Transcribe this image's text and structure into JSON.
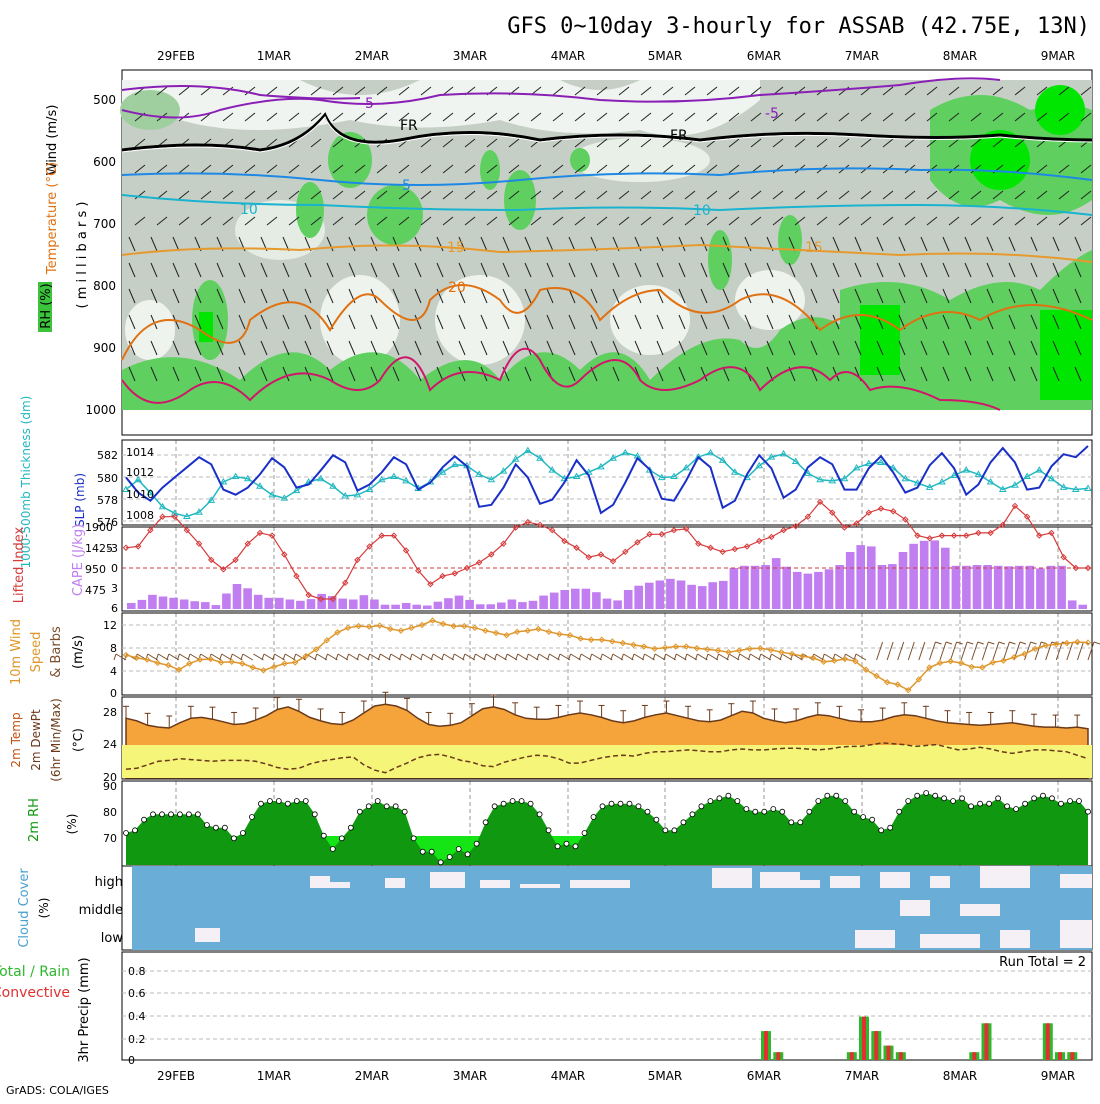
{
  "title": "GFS 0~10day 3-hourly for ASSAB (42.75E, 13N)",
  "credit": "GrADS: COLA/IGES",
  "dates": [
    "29FEB",
    "1MAR",
    "2MAR",
    "3MAR",
    "4MAR",
    "5MAR",
    "6MAR",
    "7MAR",
    "8MAR",
    "9MAR"
  ],
  "colors": {
    "rh_light": "#c8d2c8",
    "rh_mid": "#9fcf9f",
    "rh_green": "#5fd05f",
    "rh_bright": "#00e600",
    "temp_purple": "#8a1fb5",
    "temp_blue": "#1e88e5",
    "temp_cyan": "#19b3cf",
    "temp_orange": "#e69a2e",
    "temp_dark_orange": "#e07010",
    "temp_magenta": "#d0156a",
    "slp": "#1a2fc8",
    "thickness": "#22b8c0",
    "lifted": "#d63a3a",
    "cape": "#c07ef0",
    "wind": "#e0962a",
    "barb": "#7a4f2e",
    "temp_fill": "#f5a43c",
    "dew_fill": "#f5f57a",
    "rh2m_dark": "#109810",
    "rh2m_light": "#15e515",
    "cloud": "#6aaed8",
    "cloud_clear": "#f4f0f6",
    "precip_green": "#2db82d",
    "precip_red": "#e03030"
  },
  "panels": {
    "upper": {
      "ylabel_wind": "Wind (m/s)",
      "ylabel_temp": "Temperature (°C)",
      "ylabel_rh": "RH (%)",
      "ylabel_units": "( m i l l i b a r s )",
      "yticks": [
        "500",
        "600",
        "700",
        "800",
        "900",
        "1000"
      ],
      "contour_labels": [
        "-5",
        "FR",
        "5",
        "10",
        "15",
        "20",
        "-5",
        "FR",
        "5",
        "10",
        "15",
        "20"
      ]
    },
    "slp": {
      "ylabel_thick": "1000-500mb Thickness (dm)",
      "ylabel_slp": "SLP (mb)",
      "left_ticks": [
        "582",
        "580",
        "578",
        "576"
      ],
      "right_ticks": [
        "1014",
        "1012",
        "1010",
        "1008"
      ]
    },
    "cape": {
      "ylabel_li": "Lifted Index",
      "ylabel_cape": "CAPE (J/kg)",
      "left_ticks": [
        "-3",
        "0",
        "3",
        "6"
      ],
      "right_ticks": [
        "1900",
        "1425",
        "950",
        "475"
      ]
    },
    "wind": {
      "ylabel1": "10m Wind",
      "ylabel2": "Speed",
      "ylabel3": "& Barbs",
      "ylabel4": "(m/s)",
      "ticks": [
        "12",
        "8",
        "4",
        "0"
      ]
    },
    "temp": {
      "ylabel1": "2m Temp",
      "ylabel2": "2m DewPt",
      "ylabel3": "(6hr Min/Max)",
      "ylabel4": "(°C)",
      "ticks": [
        "28",
        "24",
        "20"
      ]
    },
    "rh": {
      "ylabel1": "2m RH",
      "ylabel2": "(%)",
      "ticks": [
        "90",
        "80",
        "70"
      ]
    },
    "cloud": {
      "ylabel1": "Cloud Cover",
      "ylabel2": "(%)",
      "levels": [
        "high",
        "middle",
        "low"
      ]
    },
    "precip": {
      "ylabel1": "Total / Rain",
      "ylabel2": "Convective",
      "ylabel3": "3hr Precip (mm)",
      "ticks": [
        "0.8",
        "0.6",
        "0.4",
        "0.2",
        "0"
      ],
      "run_total": "Run Total = 2"
    }
  },
  "chart_data": [
    {
      "type": "line",
      "name": "SLP",
      "unit": "mb",
      "values": [
        1011.5,
        1010,
        1009.2,
        1010.5,
        1011.5,
        1012.5,
        1013.5,
        1012.8,
        1010.3,
        1009.8,
        1010.5,
        1011.8,
        1013.4,
        1012.5,
        1010.5,
        1010.8,
        1012.2,
        1013.7,
        1013.0,
        1010.2,
        1010.8,
        1012.0,
        1013.5,
        1012.8,
        1010.3,
        1011.0,
        1012.5,
        1013.6,
        1012.6,
        1008.6,
        1008.8,
        1010.5,
        1012.8,
        1011.5,
        1008.9,
        1009.3,
        1011.0,
        1013.2,
        1011.7,
        1008.0,
        1008.8,
        1011.0,
        1013.4,
        1012.3,
        1009.4,
        1009.2,
        1011.2,
        1013.5,
        1012.5,
        1008.5,
        1009.2,
        1011.8,
        1013.7,
        1012.4,
        1009.5,
        1010.3,
        1012.5,
        1013.5,
        1012.8,
        1010.3,
        1010.3,
        1012.4,
        1013.6,
        1012.0,
        1010.0,
        1010.5,
        1012.7,
        1013.9,
        1012.4,
        1009.8,
        1010.8,
        1013.0,
        1014.4,
        1013.0,
        1010.3,
        1010.5,
        1012.6,
        1013.8,
        1013.5,
        1014.6
      ]
    },
    {
      "type": "line",
      "name": "Thickness",
      "unit": "dm",
      "values": [
        578.6,
        579.5,
        578.3,
        577.0,
        576.4,
        576.1,
        576.5,
        577.6,
        579.3,
        579.8,
        579.6,
        578.9,
        578.1,
        577.8,
        578.5,
        579.3,
        579.6,
        578.9,
        578.0,
        578.1,
        578.6,
        579.5,
        579.8,
        579.4,
        578.7,
        579.3,
        580.2,
        580.9,
        580.8,
        580.0,
        579.5,
        580.3,
        581.4,
        582.2,
        581.5,
        580.4,
        579.6,
        579.8,
        580.2,
        580.7,
        581.5,
        582.0,
        581.7,
        580.4,
        579.7,
        579.8,
        580.6,
        581.6,
        582.0,
        581.3,
        580.2,
        579.7,
        580.8,
        581.6,
        581.9,
        581.2,
        580.1,
        579.5,
        579.4,
        579.6,
        580.6,
        581.0,
        581.1,
        580.6,
        579.6,
        579.2,
        578.8,
        579.3,
        579.9,
        580.4,
        580.0,
        579.3,
        578.6,
        579.0,
        579.8,
        580.4,
        579.6,
        578.8,
        578.6,
        578.7
      ]
    },
    {
      "type": "line",
      "name": "Lifted Index",
      "values": [
        -1.5,
        -1.6,
        -2.8,
        -3.8,
        -3.8,
        -2.8,
        -1.8,
        -0.6,
        0.1,
        -0.6,
        -1.8,
        -2.6,
        -2.4,
        -1.0,
        0.6,
        2.0,
        2.3,
        2.3,
        1.1,
        -0.6,
        -1.6,
        -2.4,
        -2.4,
        -1.3,
        0.2,
        1.2,
        0.6,
        0.4,
        0.0,
        -0.4,
        -1.0,
        -1.8,
        -3.0,
        -3.4,
        -3.2,
        -2.8,
        -2.0,
        -1.5,
        -0.8,
        -1.0,
        -0.5,
        -1.2,
        -1.9,
        -2.5,
        -2.5,
        -2.8,
        -2.9,
        -1.8,
        -1.5,
        -1.2,
        -1.4,
        -1.6,
        -2.0,
        -2.3,
        -2.8,
        -3.1,
        -3.8,
        -4.9,
        -4.1,
        -3.0,
        -3.3,
        -4.1,
        -4.4,
        -4.2,
        -3.6,
        -2.4,
        -2.2,
        -2.4,
        -2.4,
        -2.4,
        -2.6,
        -2.6,
        -3.2,
        -4.6,
        -3.8,
        -2.4,
        -2.6,
        -0.8,
        0.0,
        0.0
      ]
    },
    {
      "type": "bar",
      "name": "CAPE",
      "unit": "J/kg",
      "values": [
        140,
        210,
        330,
        290,
        260,
        220,
        180,
        160,
        90,
        360,
        580,
        480,
        330,
        260,
        260,
        220,
        190,
        230,
        350,
        300,
        240,
        220,
        320,
        220,
        100,
        100,
        140,
        100,
        80,
        170,
        250,
        310,
        210,
        110,
        110,
        150,
        220,
        160,
        190,
        310,
        380,
        440,
        470,
        470,
        390,
        240,
        200,
        440,
        540,
        610,
        660,
        700,
        660,
        560,
        530,
        620,
        650,
        950,
        1000,
        1000,
        1020,
        1180,
        980,
        860,
        820,
        860,
        920,
        1020,
        1320,
        1480,
        1450,
        1020,
        1040,
        1320,
        1510,
        1580,
        1590,
        1420,
        1000,
        1000,
        1020,
        1020,
        1000,
        990,
        1000,
        1000,
        940,
        1000,
        1000,
        200,
        100
      ]
    },
    {
      "type": "line",
      "name": "10m Wind Speed",
      "unit": "m/s",
      "values": [
        6.7,
        6.2,
        5.9,
        5.3,
        4.9,
        4.1,
        5.2,
        5.9,
        6.0,
        5.4,
        5.5,
        5.2,
        4.5,
        4.0,
        4.6,
        5.2,
        5.4,
        6.5,
        7.7,
        9.3,
        10.7,
        11.5,
        11.8,
        11.7,
        11.9,
        11.3,
        11.0,
        11.5,
        12.0,
        12.8,
        12.2,
        11.8,
        11.8,
        11.5,
        11.0,
        10.6,
        10.2,
        10.8,
        11.0,
        11.3,
        10.8,
        10.4,
        10.2,
        9.6,
        9.4,
        9.4,
        9.1,
        8.8,
        8.5,
        8.2,
        7.8,
        8.0,
        8.2,
        8.2,
        7.9,
        7.7,
        7.5,
        7.2,
        7.5,
        7.8,
        7.9,
        7.6,
        7.2,
        6.9,
        6.5,
        6.2,
        5.5,
        5.7,
        6.0,
        5.6,
        4.1,
        3.0,
        1.9,
        1.5,
        0.5,
        2.4,
        4.5,
        5.3,
        5.6,
        5.3,
        4.6,
        4.5,
        5.4,
        5.7,
        6.3,
        6.9,
        7.8,
        8.4,
        8.6,
        8.8,
        9.0,
        8.9
      ]
    },
    {
      "type": "area",
      "name": "2m Temp",
      "unit": "°C",
      "values": [
        26.8,
        26.5,
        26.0,
        25.8,
        25.7,
        26.3,
        26.8,
        26.9,
        26.7,
        26.4,
        26.1,
        26.2,
        26.6,
        27.1,
        27.8,
        28.1,
        27.6,
        26.9,
        26.5,
        26.2,
        26.1,
        26.6,
        27.4,
        28.2,
        28.4,
        28.2,
        27.7,
        26.8,
        26.1,
        25.9,
        26.0,
        26.3,
        27.1,
        27.9,
        28.1,
        27.8,
        27.2,
        26.8,
        26.7,
        26.7,
        26.9,
        27.2,
        27.4,
        27.2,
        26.9,
        26.5,
        26.3,
        26.5,
        26.9,
        27.2,
        27.4,
        27.1,
        26.8,
        26.5,
        26.4,
        26.6,
        27.1,
        27.6,
        27.4,
        26.8,
        26.5,
        26.3,
        26.5,
        26.9,
        27.2,
        27.1,
        26.8,
        26.5,
        26.4,
        26.4,
        26.6,
        27.0,
        27.2,
        27.1,
        26.8,
        26.5,
        26.3,
        26.2,
        26.1,
        26.0,
        26.1,
        26.2,
        26.3,
        26.1,
        25.9,
        25.8,
        25.8,
        25.7,
        25.8,
        25.6
      ]
    },
    {
      "type": "line",
      "name": "2m DewPt",
      "unit": "°C",
      "values": [
        21.0,
        21.1,
        21.5,
        21.9,
        22.0,
        22.2,
        22.1,
        22.0,
        21.9,
        22.0,
        22.0,
        22.0,
        21.9,
        21.6,
        21.2,
        21.0,
        21.1,
        21.6,
        21.9,
        22.1,
        22.3,
        22.4,
        21.5,
        20.9,
        20.6,
        21.2,
        21.7,
        22.3,
        22.6,
        22.7,
        22.4,
        22.0,
        21.8,
        21.4,
        21.3,
        21.8,
        22.1,
        22.4,
        22.6,
        22.5,
        22.2,
        21.7,
        21.7,
        22.0,
        22.3,
        22.5,
        22.6,
        22.5,
        22.8,
        23.0,
        23.0,
        23.1,
        23.2,
        23.1,
        23.0,
        23.0,
        23.2,
        23.3,
        23.2,
        23.2,
        23.3,
        23.4,
        23.4,
        23.3,
        23.2,
        23.3,
        23.5,
        23.6,
        23.6,
        23.8,
        24.0,
        23.9,
        23.8,
        23.6,
        23.7,
        23.8,
        23.5,
        23.2,
        23.3,
        23.5,
        23.3,
        23.0,
        22.8,
        23.0,
        23.2,
        23.2,
        23.1,
        23.0,
        22.6,
        22.2
      ]
    },
    {
      "type": "area",
      "name": "2m RH",
      "unit": "%",
      "values": [
        72,
        73,
        77,
        79,
        79,
        79,
        79,
        79,
        79,
        75,
        74,
        74,
        70,
        72,
        78,
        83,
        84,
        84,
        83,
        84,
        84,
        79,
        71,
        66,
        70,
        74,
        80,
        82,
        84,
        82,
        82,
        80,
        70,
        65,
        65,
        61,
        63,
        66,
        64,
        68,
        76,
        82,
        83,
        84,
        84,
        83,
        79,
        73,
        67,
        68,
        67,
        72,
        78,
        82,
        83,
        83,
        83,
        82,
        80,
        77,
        73,
        73,
        76,
        79,
        82,
        84,
        85,
        86,
        84,
        81,
        80,
        80,
        81,
        80,
        76,
        76,
        80,
        84,
        86,
        86,
        84,
        80,
        78,
        77,
        73,
        74,
        80,
        84,
        86,
        87,
        86,
        85,
        84,
        85,
        82,
        83,
        83,
        85,
        82,
        81,
        83,
        85,
        86,
        85,
        83,
        84,
        84,
        80
      ]
    },
    {
      "type": "bar",
      "name": "3hr Precip",
      "unit": "mm",
      "bars": [
        {
          "x": "6MAR 00Z",
          "value": 0.26
        },
        {
          "x": "6MAR 03Z",
          "value": 0.07
        },
        {
          "x": "6MAR 21Z",
          "value": 0.07
        },
        {
          "x": "7MAR 00Z",
          "value": 0.39
        },
        {
          "x": "7MAR 03Z",
          "value": 0.26
        },
        {
          "x": "7MAR 06Z",
          "value": 0.13
        },
        {
          "x": "7MAR 09Z",
          "value": 0.07
        },
        {
          "x": "8MAR 03Z",
          "value": 0.07
        },
        {
          "x": "8MAR 06Z",
          "value": 0.33
        },
        {
          "x": "8MAR 21Z",
          "value": 0.33
        },
        {
          "x": "9MAR 00Z",
          "value": 0.07
        },
        {
          "x": "9MAR 03Z",
          "value": 0.07
        }
      ],
      "ylim": [
        0,
        0.9
      ]
    }
  ]
}
